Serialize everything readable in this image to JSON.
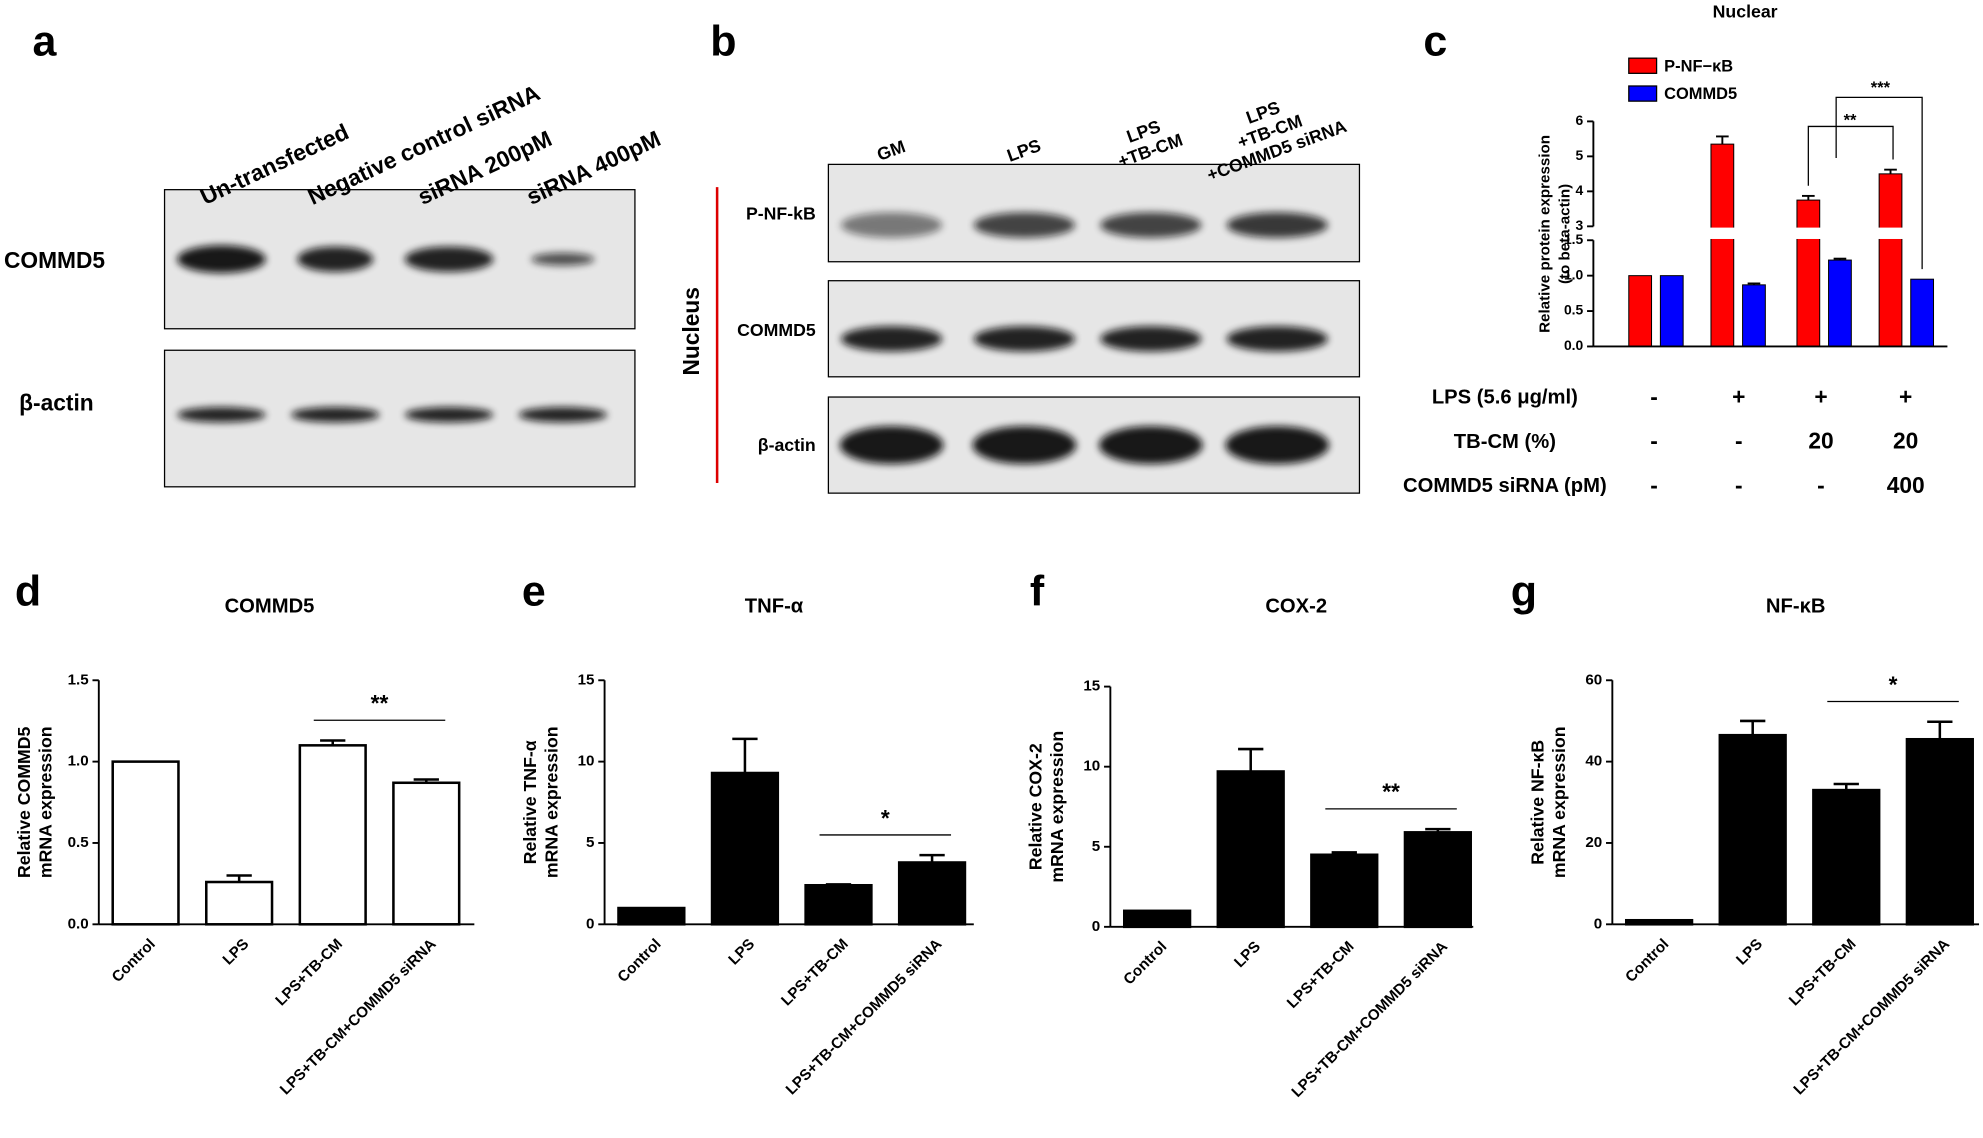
{
  "panel_labels": [
    "a",
    "b",
    "c",
    "d",
    "e",
    "f",
    "g"
  ],
  "blot_a": {
    "lanes": [
      "Un-transfected",
      "Negative control siRNA",
      "siRNA 200pM",
      "siRNA 400pM"
    ],
    "rows": [
      "COMMD5",
      "β-actin"
    ]
  },
  "blot_b": {
    "lanes": [
      [
        "GM"
      ],
      [
        "LPS"
      ],
      [
        "LPS",
        "+TB-CM"
      ],
      [
        "LPS",
        "+TB-CM",
        "+COMMD5 siRNA"
      ]
    ],
    "rows": [
      "P-NF-kB",
      "COMMD5",
      "β-actin"
    ],
    "compartment": "Nucleus"
  },
  "conditions": {
    "rows": [
      {
        "label": "LPS (5.6 μg/ml)",
        "cells": [
          "-",
          "+",
          "+",
          "+"
        ]
      },
      {
        "label": "TB-CM (%)",
        "cells": [
          "-",
          "-",
          "20",
          "20"
        ]
      },
      {
        "label": "COMMD5 siRNA (pM)",
        "cells": [
          "-",
          "-",
          "-",
          "400"
        ]
      }
    ]
  },
  "chart_data": [
    {
      "type": "broken-bar",
      "title": "Nuclear",
      "y_label": [
        "Relative protein expression",
        "(to beta-actin)"
      ],
      "series": [
        {
          "name": "P-NF−κB",
          "color": "#ff0000",
          "values": [
            1.0,
            5.35,
            3.75,
            4.5
          ],
          "errors": [
            0,
            0.22,
            0.12,
            0.12
          ]
        },
        {
          "name": "COMMD5",
          "color": "#0000ff",
          "values": [
            1.0,
            0.87,
            1.22,
            0.95
          ],
          "errors": [
            0,
            0.02,
            0.02,
            0
          ]
        }
      ],
      "ylim": [
        0,
        6
      ],
      "axis_break": [
        1.5,
        3
      ],
      "yticks": [
        {
          "value": 0,
          "label": "0.0"
        },
        {
          "value": 0.5,
          "label": "0.5"
        },
        {
          "value": 1,
          "label": "1.0"
        },
        {
          "value": 1.5,
          "label": "1.5"
        },
        3,
        4,
        5,
        6
      ],
      "annotations": [
        "**",
        "***"
      ]
    },
    {
      "type": "bar",
      "title": "COMMD5",
      "y_label": [
        "Relative COMMD5",
        "mRNA expression"
      ],
      "categories": [
        "Control",
        "LPS",
        "LPS+TB-CM",
        "LPS+TB-CM+COMMD5 siRNA"
      ],
      "values": [
        1.0,
        0.26,
        1.1,
        0.87
      ],
      "errors": [
        0,
        0.04,
        0.03,
        0.02
      ],
      "color": "#ffffff",
      "ylim": [
        0,
        1.5
      ],
      "yticks": [
        {
          "value": 0,
          "label": "0.0"
        },
        {
          "value": 0.5,
          "label": "0.5"
        },
        {
          "value": 1,
          "label": "1.0"
        },
        {
          "value": 1.5,
          "label": "1.5"
        }
      ],
      "annotations": [
        "**"
      ]
    },
    {
      "type": "bar",
      "title": "TNF-α",
      "y_label": [
        "Relative TNF-α",
        "mRNA expression"
      ],
      "categories": [
        "Control",
        "LPS",
        "LPS+TB-CM",
        "LPS+TB-CM+COMMD5 siRNA"
      ],
      "values": [
        1.0,
        9.3,
        2.4,
        3.8
      ],
      "errors": [
        0,
        2.1,
        0.05,
        0.45
      ],
      "color": "#000000",
      "ylim": [
        0,
        15
      ],
      "yticks": [
        0,
        5,
        10,
        15
      ],
      "annotations": [
        "*"
      ]
    },
    {
      "type": "bar",
      "title": "COX-2",
      "y_label": [
        "Relative COX-2",
        "mRNA expression"
      ],
      "categories": [
        "Control",
        "LPS",
        "LPS+TB-CM",
        "LPS+TB-CM+COMMD5 siRNA"
      ],
      "values": [
        1.0,
        9.7,
        4.5,
        5.9
      ],
      "errors": [
        0,
        1.4,
        0.15,
        0.2
      ],
      "color": "#000000",
      "ylim": [
        0,
        15
      ],
      "yticks": [
        0,
        5,
        10,
        15
      ],
      "annotations": [
        "**"
      ]
    },
    {
      "type": "bar",
      "title": "NF-κB",
      "y_label": [
        "Relative NF-κB",
        "mRNA expression"
      ],
      "categories": [
        "Control",
        "LPS",
        "LPS+TB-CM",
        "LPS+TB-CM+COMMD5 siRNA"
      ],
      "values": [
        1.0,
        46.5,
        33,
        45.5
      ],
      "errors": [
        0,
        3.5,
        1.5,
        4.3
      ],
      "color": "#000000",
      "ylim": [
        0,
        60
      ],
      "yticks": [
        0,
        20,
        40,
        60
      ],
      "annotations": [
        "*"
      ]
    }
  ]
}
